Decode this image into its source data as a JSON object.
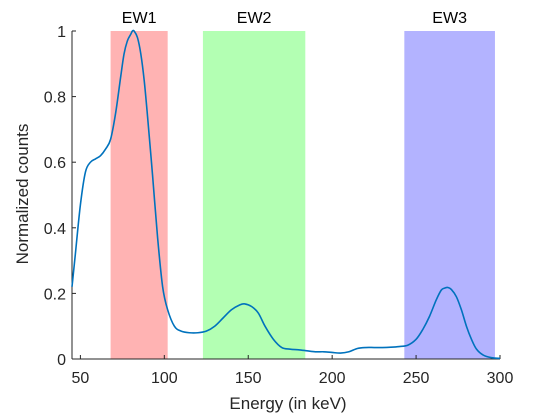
{
  "chart_data": {
    "type": "line",
    "title": "",
    "xlabel": "Energy (in keV)",
    "ylabel": "Normalized counts",
    "xlim": [
      45,
      300
    ],
    "ylim": [
      0,
      1
    ],
    "xticks": [
      50,
      100,
      150,
      200,
      250,
      300
    ],
    "xtick_labels": [
      "50",
      "100",
      "150",
      "200",
      "250",
      "300"
    ],
    "yticks": [
      0,
      0.2,
      0.4,
      0.6,
      0.8,
      1
    ],
    "ytick_labels": [
      "0",
      "0.2",
      "0.4",
      "0.6",
      "0.8",
      "1"
    ],
    "grid": false,
    "line_color": "#0072BD",
    "energy_windows": [
      {
        "label": "EW1",
        "x_start": 68,
        "x_end": 102,
        "color": "#FFB3B3"
      },
      {
        "label": "EW2",
        "x_start": 123,
        "x_end": 184,
        "color": "#B3FFB3"
      },
      {
        "label": "EW3",
        "x_start": 243,
        "x_end": 297,
        "color": "#B3B3FF"
      }
    ],
    "series": [
      {
        "x": [
          45,
          47,
          50,
          53,
          56,
          59,
          62,
          65,
          68,
          71,
          74,
          76,
          78,
          80,
          81,
          82,
          84,
          86,
          88,
          90,
          93,
          96,
          99,
          102,
          106,
          110,
          115,
          120,
          125,
          130,
          135,
          140,
          145,
          148,
          152,
          156,
          160,
          165,
          170,
          175,
          180,
          185,
          190,
          195,
          200,
          205,
          210,
          215,
          220,
          225,
          230,
          235,
          240,
          245,
          250,
          254,
          258,
          262,
          265,
          267,
          269,
          271,
          274,
          277,
          280,
          283,
          286,
          290,
          295,
          300
        ],
        "y": [
          0.22,
          0.32,
          0.47,
          0.57,
          0.6,
          0.61,
          0.62,
          0.64,
          0.67,
          0.75,
          0.86,
          0.93,
          0.97,
          0.99,
          1.0,
          1.0,
          0.98,
          0.93,
          0.85,
          0.74,
          0.56,
          0.37,
          0.22,
          0.15,
          0.1,
          0.085,
          0.08,
          0.08,
          0.085,
          0.1,
          0.125,
          0.15,
          0.165,
          0.168,
          0.16,
          0.14,
          0.1,
          0.06,
          0.035,
          0.03,
          0.028,
          0.025,
          0.022,
          0.022,
          0.02,
          0.018,
          0.022,
          0.032,
          0.035,
          0.035,
          0.035,
          0.036,
          0.038,
          0.042,
          0.06,
          0.09,
          0.13,
          0.18,
          0.21,
          0.216,
          0.218,
          0.212,
          0.19,
          0.15,
          0.1,
          0.06,
          0.03,
          0.012,
          0.004,
          0.002
        ]
      }
    ]
  }
}
